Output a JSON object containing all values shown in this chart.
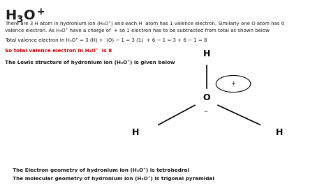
{
  "bg_color": "#ffffff",
  "text_color": "#1a1a1a",
  "red_color": "#cc0000",
  "title_bold": true,
  "para1": "There are 3 H atom in hydronium ion (H₃O⁺) and each H  atom has 1 valence electron. Similarly one O atom has 6\nvalence electron. As H₃O⁺ have a charge of  + so 1 electron has to be subtracted from total as shown below",
  "para2": "Total valence electron in H₃O⁺ = 3 (H) +  (O) − 1 = 3 (1)  + 6 − 1 = 3 + 6 − 1 = 8",
  "para3": "So total valence electron in H₃O⁺  is 8",
  "para4": "The Lewis structure of hydronium ion (H₃O⁺) is given below",
  "para5": "The Electron geometry of hydronium ion (H₃O⁺) is tetrahedral",
  "para6": "The molecular geometry of hydronium ion (H₃O⁺) is trigonal pyramidal",
  "fig_width": 4.74,
  "fig_height": 2.79,
  "dpi": 100
}
